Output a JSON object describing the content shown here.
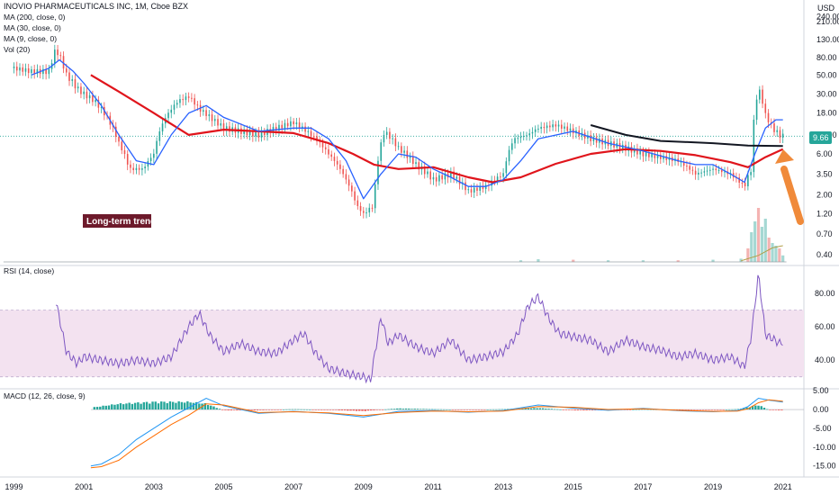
{
  "header": {
    "title": "INOVIO PHARMACEUTICALS INC, 1M, Cboe BZX",
    "currency": "USD"
  },
  "legend_main": [
    "MA (200, close, 0)",
    "MA (30, close, 0)",
    "MA (9, close, 0)",
    "Vol (20)"
  ],
  "annotation": "Long-term trend",
  "price_marker": "9.66",
  "rsi_label": "RSI (14, close)",
  "macd_label": "MACD (12, 26, close, 9)",
  "colors": {
    "up": "#26a69a",
    "down": "#ef5350",
    "ma30": "#e0151c",
    "ma9": "#2962ff",
    "trendline": "#131722",
    "rsi": "#7e57c2",
    "rsi_band": "#f3e2f0",
    "signal": "#ff6d00",
    "arrow": "#f08a3a",
    "price_badge": "#26a69a"
  },
  "chart_data": [
    {
      "type": "line",
      "panel": "price",
      "title": "INOVIO PHARMACEUTICALS INC, 1M, Cboe BZX",
      "scale": "log",
      "ylim": [
        0.33,
        340
      ],
      "y_ticks": [
        "240.00",
        "210.00",
        "130.00",
        "80.00",
        "50.00",
        "30.00",
        "18.00",
        "10.00",
        "6.00",
        "3.50",
        "2.00",
        "1.20",
        "0.70",
        "0.40"
      ],
      "y_tick_values": [
        240,
        210,
        130,
        80,
        50,
        30,
        18,
        10,
        6,
        3.5,
        2,
        1.2,
        0.7,
        0.4
      ],
      "x_ticks": [
        "1999",
        "2001",
        "2003",
        "2005",
        "2007",
        "2009",
        "2011",
        "2013",
        "2015",
        "2017",
        "2019",
        "2021"
      ],
      "x_tick_values": [
        1999,
        2001,
        2003,
        2005,
        2007,
        2009,
        2011,
        2013,
        2015,
        2017,
        2019,
        2021
      ],
      "xlim": [
        1998.6,
        2021.6
      ],
      "last_price": 9.66,
      "close_series": {
        "x": [
          1999.0,
          1999.5,
          2000.0,
          2000.2,
          2000.5,
          2000.8,
          2001.0,
          2001.3,
          2001.7,
          2002.0,
          2002.3,
          2002.7,
          2003.0,
          2003.3,
          2003.7,
          2004.0,
          2004.3,
          2004.7,
          2005.0,
          2005.5,
          2006.0,
          2006.5,
          2007.0,
          2007.5,
          2008.0,
          2008.5,
          2008.8,
          2009.0,
          2009.3,
          2009.6,
          2010.0,
          2010.5,
          2011.0,
          2011.5,
          2012.0,
          2012.5,
          2013.0,
          2013.3,
          2013.7,
          2014.0,
          2014.5,
          2015.0,
          2015.5,
          2016.0,
          2016.5,
          2017.0,
          2017.5,
          2018.0,
          2018.5,
          2019.0,
          2019.5,
          2019.9,
          2020.1,
          2020.3,
          2020.5,
          2020.7,
          2020.9,
          2021.0
        ],
        "y": [
          60,
          55,
          55,
          100,
          50,
          35,
          30,
          25,
          15,
          8,
          4,
          4,
          6,
          15,
          25,
          28,
          20,
          15,
          12,
          11,
          10,
          12,
          14,
          10,
          6,
          3,
          1.5,
          1.2,
          1.5,
          11,
          7,
          4.5,
          3,
          3.5,
          2.2,
          2.5,
          3.5,
          9,
          10,
          12,
          13,
          11,
          9,
          8,
          7,
          6,
          5.5,
          5,
          3.5,
          4,
          3.5,
          2.5,
          4,
          35,
          17,
          12,
          10,
          9.66
        ]
      },
      "series": [
        {
          "name": "MA (30, close, 0)",
          "x": [
            2001.2,
            2002.0,
            2003.0,
            2004.0,
            2005.0,
            2006.0,
            2007.0,
            2008.0,
            2008.7,
            2009.3,
            2010.0,
            2011.0,
            2012.0,
            2012.7,
            2013.5,
            2014.5,
            2015.5,
            2016.5,
            2017.5,
            2018.5,
            2019.5,
            2020.0,
            2020.5,
            2021.0
          ],
          "y": [
            50,
            32,
            18,
            10,
            11.5,
            11,
            10.5,
            8,
            6,
            4.5,
            4,
            4.2,
            3.2,
            2.8,
            3.2,
            4.6,
            6,
            6.8,
            6.5,
            5.8,
            4.8,
            4.2,
            5.5,
            6.8
          ]
        },
        {
          "name": "MA (9, close, 0)",
          "x": [
            1999.5,
            2000.0,
            2000.3,
            2000.7,
            2001.0,
            2001.5,
            2002.0,
            2002.5,
            2003.0,
            2003.5,
            2004.0,
            2004.5,
            2005.0,
            2006.0,
            2007.0,
            2007.5,
            2008.0,
            2008.5,
            2009.0,
            2009.5,
            2010.0,
            2010.5,
            2011.0,
            2011.5,
            2012.0,
            2012.5,
            2013.0,
            2013.5,
            2014.0,
            2015.0,
            2016.0,
            2017.0,
            2018.0,
            2018.5,
            2019.0,
            2019.5,
            2019.9,
            2020.2,
            2020.5,
            2020.8,
            2021.0
          ],
          "y": [
            50,
            60,
            75,
            55,
            40,
            22,
            10,
            5,
            4.5,
            10,
            18,
            22,
            16,
            11,
            12,
            12,
            9,
            5,
            1.8,
            3.5,
            6,
            5.5,
            4,
            3.2,
            2.5,
            2.5,
            3,
            5,
            9,
            11,
            8,
            6.5,
            5,
            4.5,
            4.5,
            3.5,
            2.8,
            6,
            12,
            15,
            15
          ]
        },
        {
          "name": "Long-term trend",
          "x": [
            2015.5,
            2016.5,
            2017.5,
            2019.0,
            2020.0,
            2021.0
          ],
          "y": [
            13,
            10,
            8.5,
            8,
            7.5,
            7.4
          ]
        }
      ],
      "annotation": "Long-term trend"
    },
    {
      "type": "bar",
      "panel": "volume",
      "name": "Vol (20)",
      "x": [
        2013.5,
        2014.0,
        2015.0,
        2016.0,
        2017.0,
        2018.0,
        2019.0,
        2019.8,
        2020.0,
        2020.1,
        2020.2,
        2020.3,
        2020.4,
        2020.5,
        2020.6,
        2020.7,
        2020.8,
        2020.9,
        2021.0
      ],
      "values": [
        0.03,
        0.05,
        0.04,
        0.03,
        0.03,
        0.03,
        0.04,
        0.06,
        0.25,
        0.55,
        0.75,
        1.0,
        0.65,
        0.8,
        0.45,
        0.35,
        0.3,
        0.25,
        0.12
      ]
    },
    {
      "type": "line",
      "panel": "rsi",
      "title": "RSI (14, close)",
      "ylim": [
        25,
        95
      ],
      "y_ticks": [
        "80.00",
        "60.00",
        "40.00"
      ],
      "y_tick_values": [
        80,
        60,
        40
      ],
      "band": [
        30,
        70
      ],
      "series": [
        {
          "name": "RSI (14, close)",
          "x": [
            2000.2,
            2000.5,
            2000.8,
            2001.0,
            2001.5,
            2002.0,
            2002.5,
            2003.0,
            2003.5,
            2004.0,
            2004.3,
            2004.6,
            2005.0,
            2005.5,
            2006.0,
            2006.5,
            2007.0,
            2007.3,
            2007.6,
            2008.0,
            2008.5,
            2009.0,
            2009.2,
            2009.5,
            2009.7,
            2010.0,
            2010.5,
            2011.0,
            2011.5,
            2012.0,
            2012.5,
            2013.0,
            2013.4,
            2013.7,
            2014.0,
            2014.3,
            2014.6,
            2015.0,
            2015.5,
            2016.0,
            2016.5,
            2017.0,
            2017.5,
            2018.0,
            2018.5,
            2019.0,
            2019.5,
            2019.9,
            2020.1,
            2020.3,
            2020.5,
            2020.7,
            2020.9,
            2021.0
          ],
          "y": [
            75,
            45,
            38,
            42,
            40,
            38,
            40,
            38,
            42,
            60,
            68,
            55,
            45,
            50,
            45,
            44,
            52,
            56,
            45,
            35,
            32,
            30,
            28,
            66,
            50,
            55,
            48,
            44,
            52,
            40,
            42,
            45,
            55,
            72,
            78,
            65,
            56,
            54,
            52,
            45,
            52,
            48,
            46,
            42,
            44,
            40,
            42,
            36,
            55,
            92,
            55,
            53,
            50,
            51
          ]
        }
      ]
    },
    {
      "type": "line",
      "panel": "macd",
      "title": "MACD (12, 26, close, 9)",
      "ylim": [
        -17,
        6
      ],
      "y_ticks": [
        "5.00",
        "0.00",
        "-5.00",
        "-10.00",
        "-15.00"
      ],
      "y_tick_values": [
        5,
        0,
        -5,
        -10,
        -15
      ],
      "series": [
        {
          "name": "MACD",
          "x": [
            2001.2,
            2001.5,
            2002.0,
            2002.5,
            2003.0,
            2003.5,
            2004.0,
            2004.5,
            2005.0,
            2006.0,
            2007.0,
            2008.0,
            2009.0,
            2010.0,
            2011.0,
            2012.0,
            2013.0,
            2014.0,
            2015.0,
            2016.0,
            2017.0,
            2018.0,
            2019.0,
            2019.7,
            2020.0,
            2020.3,
            2020.6,
            2021.0
          ],
          "y": [
            -15,
            -14.5,
            -12,
            -8,
            -5,
            -2,
            0.5,
            3,
            1,
            -1,
            -0.5,
            -1,
            -2,
            -0.5,
            -0.3,
            -0.7,
            -0.3,
            1.2,
            0.4,
            -0.2,
            0.3,
            -0.3,
            -0.6,
            -0.3,
            0.8,
            3,
            2.5,
            2
          ]
        },
        {
          "name": "Signal",
          "x": [
            2001.2,
            2001.5,
            2002.0,
            2002.5,
            2003.0,
            2003.5,
            2004.0,
            2004.5,
            2005.0,
            2006.0,
            2007.0,
            2008.0,
            2009.0,
            2010.0,
            2011.0,
            2012.0,
            2013.0,
            2014.0,
            2015.0,
            2016.0,
            2017.0,
            2018.0,
            2019.0,
            2019.7,
            2020.0,
            2020.3,
            2020.6,
            2021.0
          ],
          "y": [
            -15.5,
            -15.2,
            -13.5,
            -10,
            -7,
            -4,
            -1.5,
            1.5,
            1.2,
            -0.8,
            -0.6,
            -0.9,
            -1.6,
            -0.8,
            -0.4,
            -0.6,
            -0.4,
            0.8,
            0.6,
            0,
            0.2,
            -0.2,
            -0.5,
            -0.4,
            0.2,
            1.8,
            2.6,
            2.2
          ]
        }
      ],
      "histogram": {
        "x": [
          2001.2,
          2002.0,
          2003.0,
          2003.5,
          2004.0,
          2004.5,
          2005.0,
          2006.0,
          2007.0,
          2008.0,
          2009.0,
          2010.0,
          2011.0,
          2012.0,
          2013.0,
          2014.0,
          2015.0,
          2016.0,
          2017.0,
          2018.0,
          2019.0,
          2019.7,
          2020.0,
          2020.3,
          2020.6,
          2021.0
        ],
        "values": [
          0.5,
          1.5,
          2,
          2,
          2,
          1.5,
          -0.2,
          -0.2,
          0.1,
          -0.1,
          -0.4,
          0.3,
          0.1,
          -0.1,
          0.1,
          0.4,
          -0.2,
          -0.2,
          0.1,
          -0.1,
          -0.1,
          0.1,
          0.6,
          1.2,
          -0.1,
          -0.2
        ]
      }
    }
  ]
}
